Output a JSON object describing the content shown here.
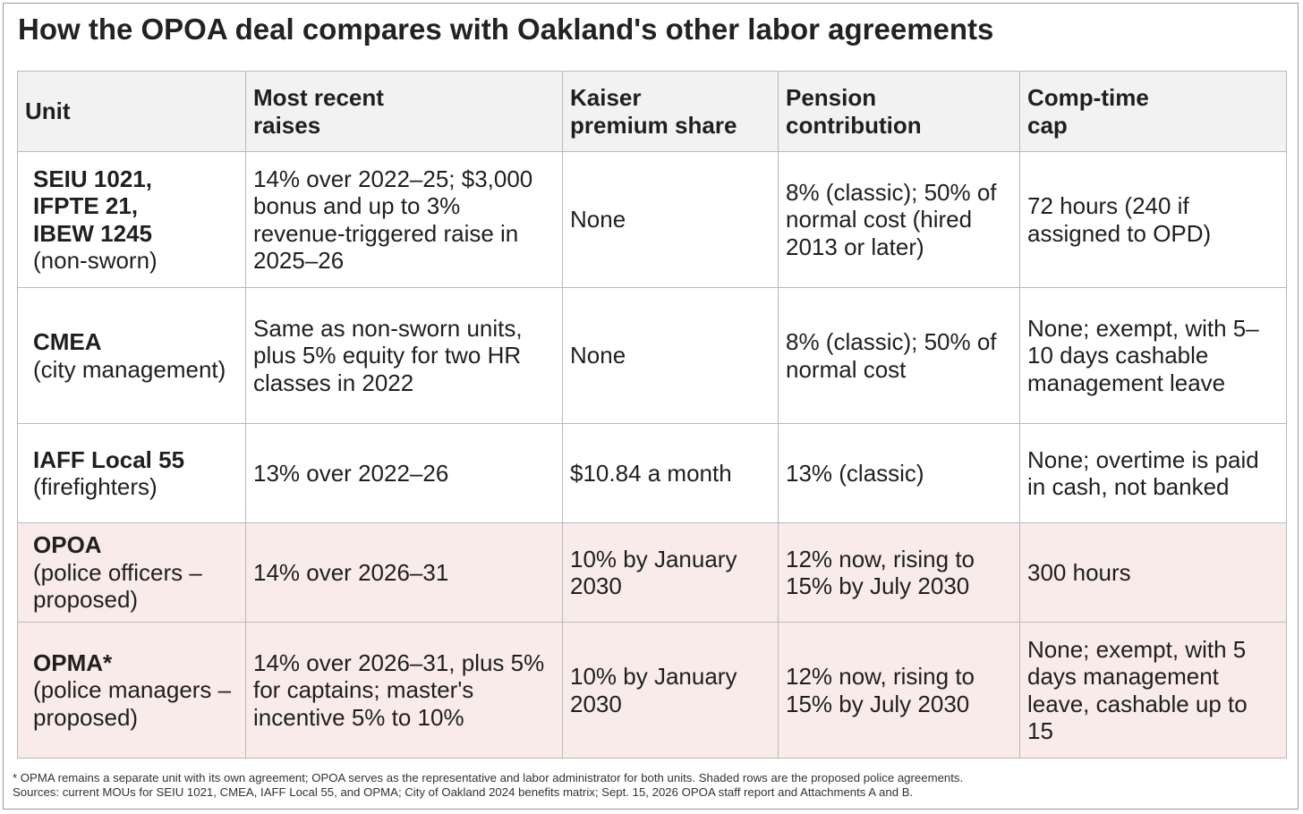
{
  "title": "How the OPOA deal compares with Oakland's other labor agreements",
  "columns": {
    "unit": "Unit",
    "raises_line1": "Most recent",
    "raises_line2": "raises",
    "kaiser_line1": "Kaiser",
    "kaiser_line2": "premium share",
    "pension_line1": "Pension",
    "pension_line2": "contribution",
    "comp_line1": "Comp-time",
    "comp_line2": "cap"
  },
  "rows": [
    {
      "unit_name": "SEIU 1021, IFPTE 21, IBEW 1245",
      "unit_desc": "(non-sworn)",
      "raises": "14% over 2022–25; $3,000 bonus and up to 3% revenue-triggered raise in 2025–26",
      "kaiser": "None",
      "pension": "8% (classic); 50% of normal cost (hired 2013 or later)",
      "comp": "72 hours (240 if assigned to OPD)"
    },
    {
      "unit_name": "CMEA",
      "unit_desc": "(city management)",
      "raises": "Same as non-sworn units, plus 5% equity for two HR classes in 2022",
      "kaiser": "None",
      "pension": "8% (classic); 50% of normal cost",
      "comp": "None; exempt, with 5–10 days cashable management leave"
    },
    {
      "unit_name": "IAFF Local 55",
      "unit_desc": "(firefighters)",
      "raises": "13% over 2022–26",
      "kaiser": "$10.84 a month",
      "pension": "13% (classic)",
      "comp": "None; overtime is paid in cash, not banked"
    },
    {
      "unit_name": "OPOA",
      "unit_desc": "(police officers – proposed)",
      "raises": "14% over 2026–31",
      "kaiser": "10% by January 2030",
      "pension": "12% now, rising to 15% by July 2030",
      "comp": "300 hours"
    },
    {
      "unit_name": "OPMA*",
      "unit_desc": "(police managers – proposed)",
      "raises": "14% over 2026–31, plus 5% for captains; master's incentive 5% to 10%",
      "kaiser": "10% by January 2030",
      "pension": "12% now, rising to 15% by July 2030",
      "comp": "None; exempt, with 5 days management leave, cashable up to 15"
    }
  ],
  "footnote": "* OPMA remains a separate unit with its own agreement; OPOA serves as the representative and labor administrator for both units. Shaded rows are the proposed police agreements.",
  "sources": "Sources: current MOUs for SEIU 1021, CMEA, IAFF Local 55, and OPMA; City of Oakland 2024 benefits matrix; Sept. 15, 2026 OPOA staff report and Attachments A and B.",
  "colors": {
    "header_bg": "#f2f2f2",
    "proposed_row_bg": "#f9ebea",
    "border": "#b9b9b9"
  }
}
